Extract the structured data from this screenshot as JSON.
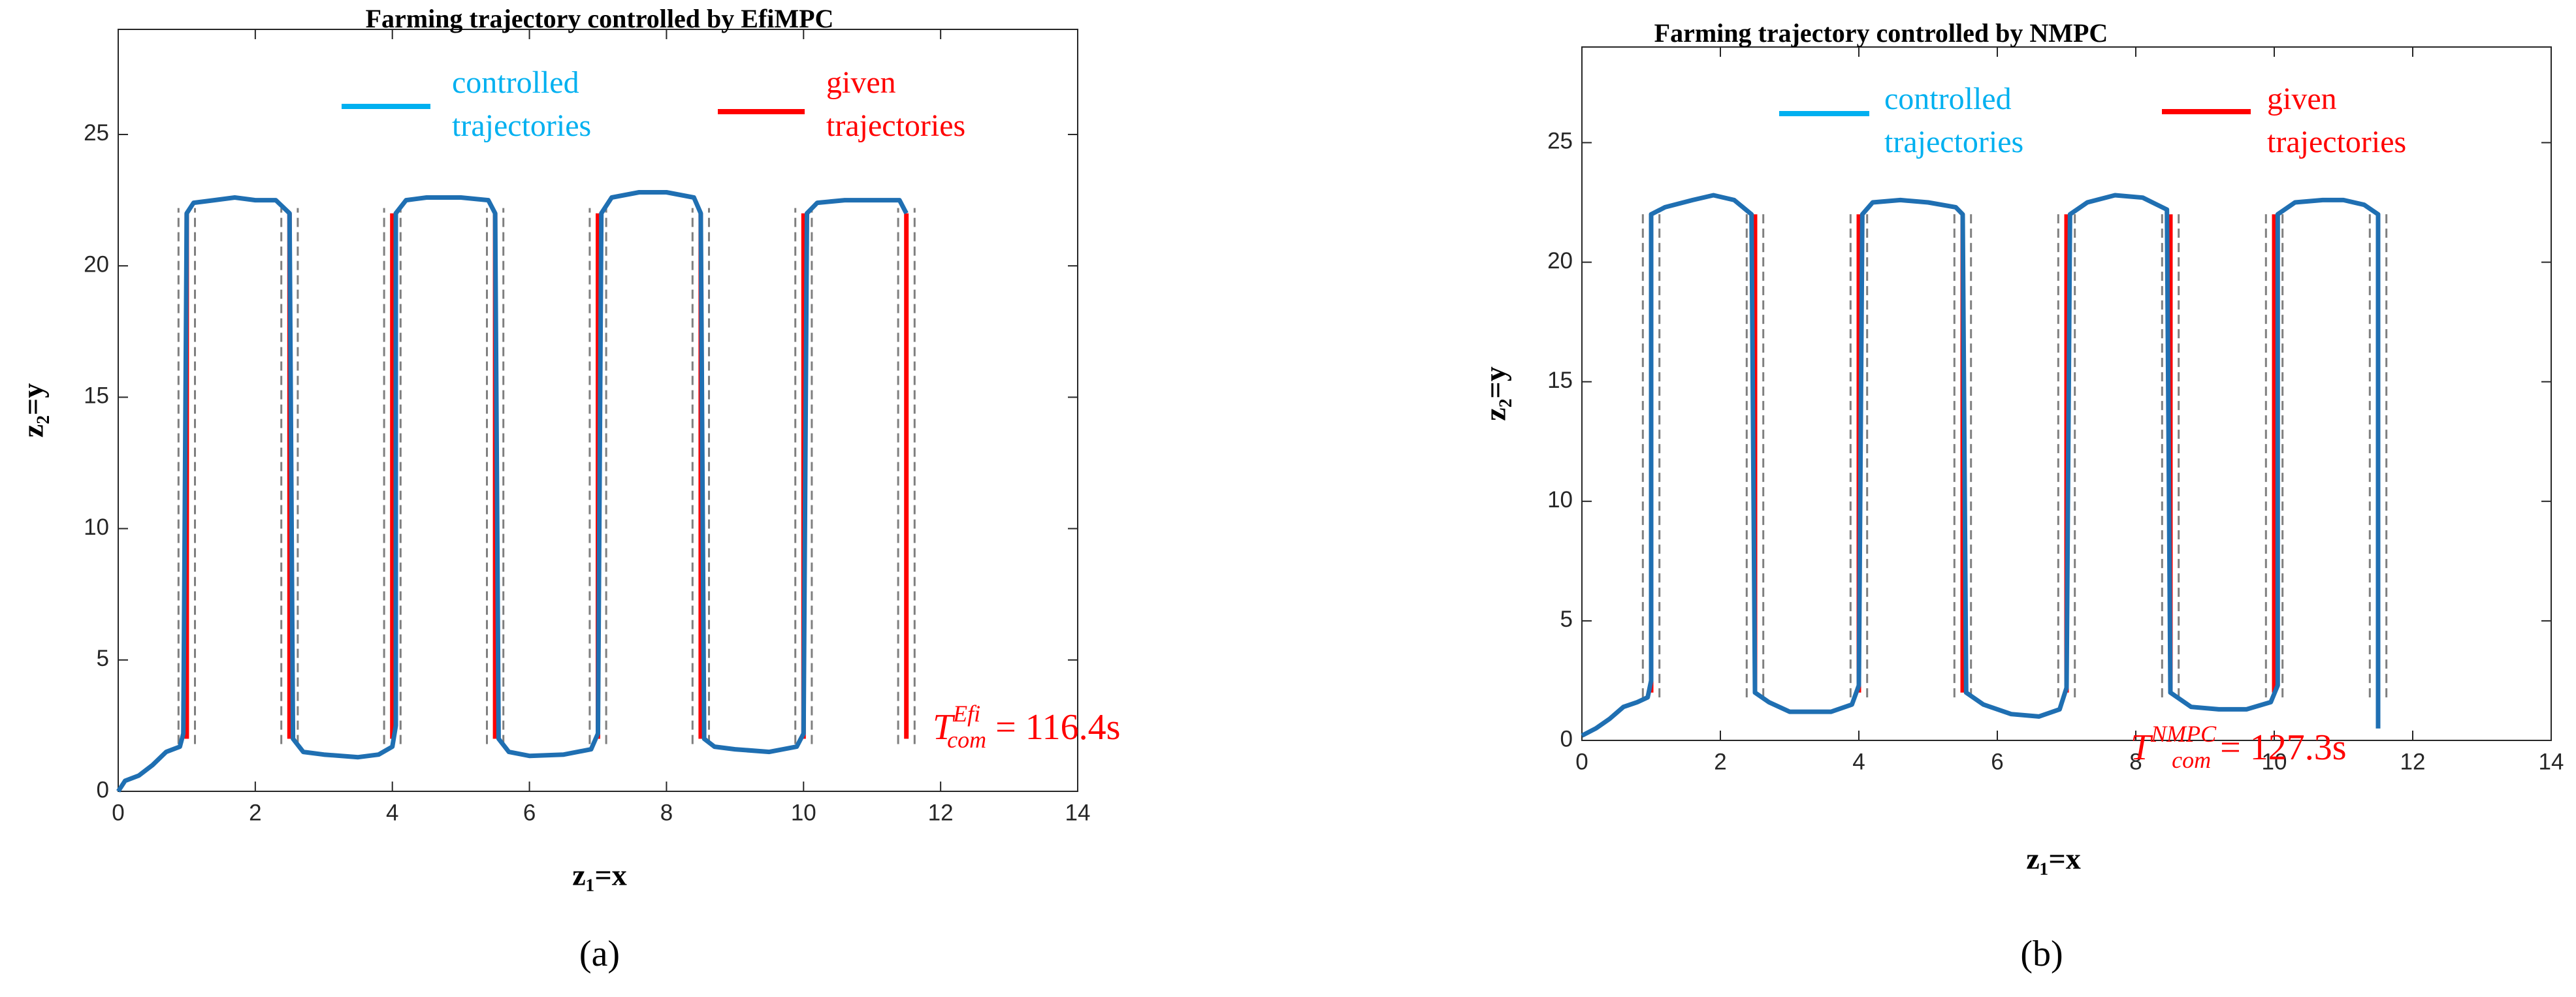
{
  "chart_data": [
    {
      "type": "line",
      "title": "Farming trajectory controlled by EfiMPC",
      "xlabel": "z₁=x",
      "ylabel": "z₂=y",
      "panel": "(a)",
      "xlim": [
        0,
        14
      ],
      "ylim": [
        0,
        29
      ],
      "xticks": [
        0,
        2,
        4,
        6,
        8,
        10,
        12,
        14
      ],
      "yticks": [
        0,
        5,
        10,
        15,
        20,
        25
      ],
      "annotation": {
        "base": "T",
        "sub": "com",
        "sup": "Efi",
        "text": " = 116.4s",
        "color": "#ff0000"
      },
      "series": [
        {
          "name": "controlled trajectories",
          "color": "#1f6fb2",
          "legend_color": "#00b0f0",
          "x": [
            0,
            0.1,
            0.3,
            0.5,
            0.7,
            0.9,
            0.95,
            1.0,
            1.1,
            1.4,
            1.7,
            2.0,
            2.3,
            2.5,
            2.55,
            2.7,
            3.0,
            3.5,
            3.8,
            4.0,
            4.05,
            4.05,
            4.2,
            4.5,
            5.0,
            5.4,
            5.5,
            5.55,
            5.7,
            6.0,
            6.5,
            6.9,
            7.0,
            7.05,
            7.2,
            7.6,
            8.0,
            8.4,
            8.5,
            8.55,
            8.7,
            9.0,
            9.5,
            9.9,
            10.0,
            10.05,
            10.2,
            10.6,
            11.0,
            11.4,
            11.5
          ],
          "y": [
            0,
            0.4,
            0.6,
            1.0,
            1.5,
            1.7,
            2.2,
            22,
            22.4,
            22.5,
            22.6,
            22.5,
            22.5,
            22.0,
            2.0,
            1.5,
            1.4,
            1.3,
            1.4,
            1.7,
            2.5,
            22,
            22.5,
            22.6,
            22.6,
            22.5,
            22,
            2,
            1.5,
            1.35,
            1.4,
            1.6,
            2.2,
            22,
            22.6,
            22.8,
            22.8,
            22.6,
            22,
            2,
            1.7,
            1.6,
            1.5,
            1.7,
            2.2,
            22,
            22.4,
            22.5,
            22.5,
            22.5,
            22
          ]
        },
        {
          "name": "given trajectories",
          "color": "#ff0000",
          "x": [
            1,
            1,
            null,
            2.5,
            2.5,
            null,
            4,
            4,
            null,
            5.5,
            5.5,
            null,
            7,
            7,
            null,
            8.5,
            8.5,
            null,
            10,
            10,
            null,
            11.5,
            11.5
          ],
          "y": [
            2,
            22,
            null,
            2,
            22,
            null,
            2,
            22,
            null,
            2,
            22,
            null,
            2,
            22,
            null,
            2,
            22,
            null,
            2,
            22,
            null,
            2,
            22
          ]
        },
        {
          "color": "#7f7f7f",
          "dash": true,
          "x": [
            0.88,
            0.88,
            null,
            1.12,
            1.12,
            null,
            2.38,
            2.38,
            null,
            2.62,
            2.62,
            null,
            3.88,
            3.88,
            null,
            4.12,
            4.12,
            null,
            5.38,
            5.38,
            null,
            5.62,
            5.62,
            null,
            6.88,
            6.88,
            null,
            7.12,
            7.12,
            null,
            8.38,
            8.38,
            null,
            8.62,
            8.62,
            null,
            9.88,
            9.88,
            null,
            10.12,
            10.12,
            null,
            11.38,
            11.38,
            null,
            11.62,
            11.62
          ],
          "y": [
            1.8,
            22.2,
            null,
            1.8,
            22.2,
            null,
            1.8,
            22.2,
            null,
            1.8,
            22.2,
            null,
            1.8,
            22.2,
            null,
            1.8,
            22.2,
            null,
            1.8,
            22.2,
            null,
            1.8,
            22.2,
            null,
            1.8,
            22.2,
            null,
            1.8,
            22.2,
            null,
            1.8,
            22.2,
            null,
            1.8,
            22.2,
            null,
            1.8,
            22.2,
            null,
            1.8,
            22.2,
            null,
            1.8,
            22.2,
            null,
            1.8,
            22.2
          ]
        }
      ]
    },
    {
      "type": "line",
      "title": "Farming trajectory controlled by NMPC",
      "xlabel": "z₁=x",
      "ylabel": "z₂=y",
      "panel": "(b)",
      "xlim": [
        0,
        14
      ],
      "ylim": [
        0,
        29
      ],
      "xticks": [
        0,
        2,
        4,
        6,
        8,
        10,
        12,
        14
      ],
      "yticks": [
        0,
        5,
        10,
        15,
        20,
        25
      ],
      "annotation": {
        "base": "T",
        "sub": "com",
        "sup": "NMPC",
        "text": " = 127.3s",
        "color": "#ff0000"
      },
      "series": [
        {
          "name": "controlled trajectories",
          "color": "#1f6fb2",
          "legend_color": "#00b0f0",
          "x": [
            0,
            0.2,
            0.4,
            0.6,
            0.8,
            0.95,
            1.0,
            1.0,
            1.2,
            1.6,
            1.9,
            2.2,
            2.45,
            2.5,
            2.7,
            3.0,
            3.3,
            3.6,
            3.9,
            4.0,
            4.05,
            4.2,
            4.6,
            5.0,
            5.4,
            5.5,
            5.55,
            5.8,
            6.2,
            6.6,
            6.9,
            7.0,
            7.05,
            7.3,
            7.7,
            8.1,
            8.45,
            8.5,
            8.8,
            9.2,
            9.6,
            9.95,
            10.05,
            10.05,
            10.3,
            10.7,
            11.0,
            11.3,
            11.5,
            11.5,
            11.5
          ],
          "y": [
            0.2,
            0.5,
            0.9,
            1.4,
            1.6,
            1.8,
            2.5,
            22,
            22.3,
            22.6,
            22.8,
            22.6,
            22,
            2,
            1.6,
            1.2,
            1.2,
            1.2,
            1.5,
            2.3,
            22,
            22.5,
            22.6,
            22.5,
            22.3,
            22,
            2,
            1.5,
            1.1,
            1.0,
            1.3,
            2.2,
            22,
            22.5,
            22.8,
            22.7,
            22.2,
            2,
            1.4,
            1.3,
            1.3,
            1.6,
            2.3,
            22,
            22.5,
            22.6,
            22.6,
            22.4,
            22,
            2,
            0.5
          ]
        },
        {
          "name": "given trajectories",
          "color": "#ff0000",
          "x": [
            1,
            1,
            null,
            2.5,
            2.5,
            null,
            4,
            4,
            null,
            5.5,
            5.5,
            null,
            7,
            7,
            null,
            8.5,
            8.5,
            null,
            10,
            10,
            null,
            11.5,
            11.5
          ],
          "y": [
            2,
            22,
            null,
            2,
            22,
            null,
            2,
            22,
            null,
            2,
            22,
            null,
            2,
            22,
            null,
            2,
            22,
            null,
            2,
            22,
            null,
            2,
            22
          ]
        },
        {
          "color": "#7f7f7f",
          "dash": true,
          "x": [
            0.88,
            0.88,
            null,
            1.12,
            1.12,
            null,
            2.38,
            2.38,
            null,
            2.62,
            2.62,
            null,
            3.88,
            3.88,
            null,
            4.12,
            4.12,
            null,
            5.38,
            5.38,
            null,
            5.62,
            5.62,
            null,
            6.88,
            6.88,
            null,
            7.12,
            7.12,
            null,
            8.38,
            8.38,
            null,
            8.62,
            8.62,
            null,
            9.88,
            9.88,
            null,
            10.12,
            10.12,
            null,
            11.38,
            11.38,
            null,
            11.62,
            11.62
          ],
          "y": [
            1.8,
            22.2,
            null,
            1.8,
            22.2,
            null,
            1.8,
            22.2,
            null,
            1.8,
            22.2,
            null,
            1.8,
            22.2,
            null,
            1.8,
            22.2,
            null,
            1.8,
            22.2,
            null,
            1.8,
            22.2,
            null,
            1.8,
            22.2,
            null,
            1.8,
            22.2,
            null,
            1.8,
            22.2,
            null,
            1.8,
            22.2,
            null,
            1.8,
            22.2,
            null,
            1.8,
            22.2,
            null,
            1.8,
            22.2,
            null,
            1.8,
            22.2
          ]
        }
      ]
    }
  ]
}
